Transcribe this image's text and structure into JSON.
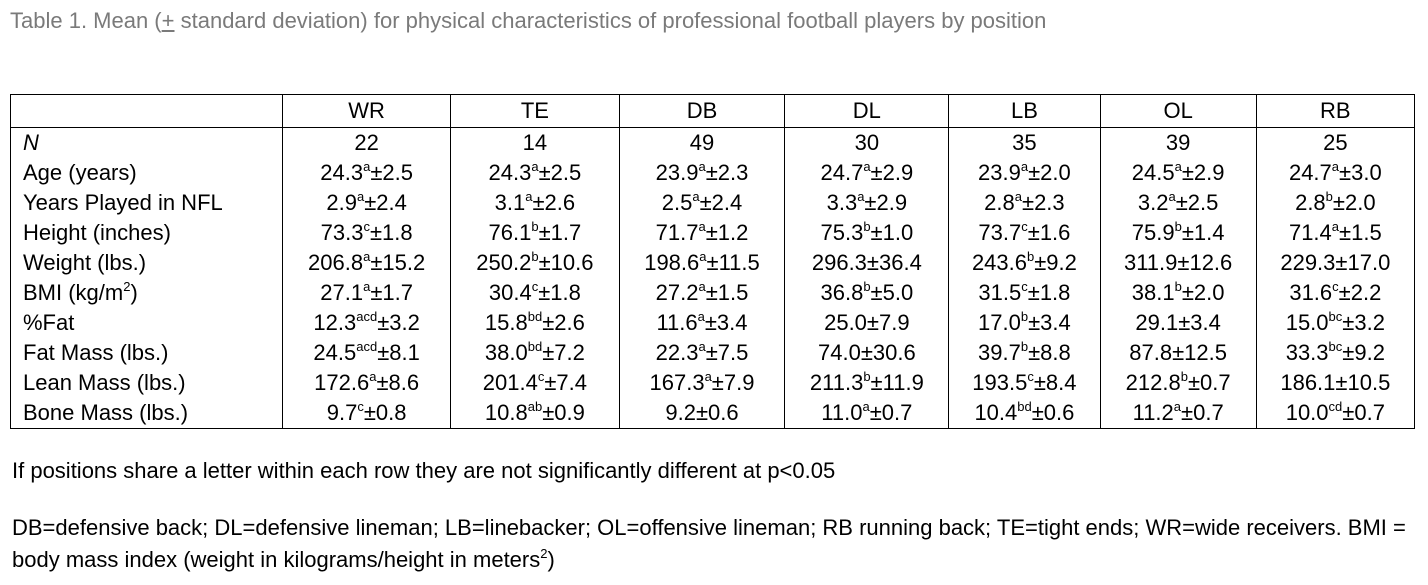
{
  "caption": {
    "prefix": "Table 1. Mean (",
    "pm": "+",
    "suffix": " standard deviation) for physical characteristics of professional football players by position"
  },
  "table": {
    "columns": [
      "",
      "WR",
      "TE",
      "DB",
      "DL",
      "LB",
      "OL",
      "RB"
    ],
    "n_row": {
      "label": "N",
      "values": [
        "22",
        "14",
        "49",
        "30",
        "35",
        "39",
        "25"
      ]
    },
    "rows": [
      {
        "label": "Age (years)",
        "cells": [
          {
            "m": "24.3",
            "s": "a",
            "sd": "±2.5"
          },
          {
            "m": "24.3",
            "s": "a",
            "sd": "±2.5"
          },
          {
            "m": "23.9",
            "s": "a",
            "sd": "±2.3"
          },
          {
            "m": "24.7",
            "s": "a",
            "sd": "±2.9"
          },
          {
            "m": "23.9",
            "s": "a",
            "sd": "±2.0"
          },
          {
            "m": "24.5",
            "s": "a",
            "sd": "±2.9"
          },
          {
            "m": "24.7",
            "s": "a",
            "sd": "±3.0"
          }
        ]
      },
      {
        "label": "Years Played in NFL",
        "cells": [
          {
            "m": "2.9",
            "s": "a",
            "sd": "±2.4"
          },
          {
            "m": "3.1",
            "s": "a",
            "sd": "±2.6"
          },
          {
            "m": "2.5",
            "s": "a",
            "sd": "±2.4"
          },
          {
            "m": "3.3",
            "s": "a",
            "sd": "±2.9"
          },
          {
            "m": "2.8",
            "s": "a",
            "sd": "±2.3"
          },
          {
            "m": "3.2",
            "s": "a",
            "sd": "±2.5"
          },
          {
            "m": "2.8",
            "s": "b",
            "sd": "±2.0"
          }
        ]
      },
      {
        "label": "Height (inches)",
        "cells": [
          {
            "m": "73.3",
            "s": "c",
            "sd": "±1.8"
          },
          {
            "m": "76.1",
            "s": "b",
            "sd": "±1.7"
          },
          {
            "m": "71.7",
            "s": "a",
            "sd": "±1.2"
          },
          {
            "m": "75.3",
            "s": "b",
            "sd": "±1.0"
          },
          {
            "m": "73.7",
            "s": "c",
            "sd": "±1.6"
          },
          {
            "m": "75.9",
            "s": "b",
            "sd": "±1.4"
          },
          {
            "m": "71.4",
            "s": "a",
            "sd": "±1.5"
          }
        ]
      },
      {
        "label": "Weight (lbs.)",
        "cells": [
          {
            "m": "206.8",
            "s": "a",
            "sd": "±15.2"
          },
          {
            "m": "250.2",
            "s": "b",
            "sd": "±10.6"
          },
          {
            "m": "198.6",
            "s": "a",
            "sd": "±11.5"
          },
          {
            "m": "296.3",
            "s": "",
            "sd": "±36.4"
          },
          {
            "m": "243.6",
            "s": "b",
            "sd": "±9.2"
          },
          {
            "m": "311.9",
            "s": "",
            "sd": "±12.6"
          },
          {
            "m": "229.3",
            "s": "",
            "sd": "±17.0"
          }
        ]
      },
      {
        "label": "BMI (kg/m",
        "label_sup": "2",
        "label_after": ")",
        "cells": [
          {
            "m": "27.1",
            "s": "a",
            "sd": "±1.7"
          },
          {
            "m": "30.4",
            "s": "c",
            "sd": "±1.8"
          },
          {
            "m": "27.2",
            "s": "a",
            "sd": "±1.5"
          },
          {
            "m": "36.8",
            "s": "b",
            "sd": "±5.0"
          },
          {
            "m": "31.5",
            "s": "c",
            "sd": "±1.8"
          },
          {
            "m": "38.1",
            "s": "b",
            "sd": "±2.0"
          },
          {
            "m": "31.6",
            "s": "c",
            "sd": "±2.2"
          }
        ]
      },
      {
        "label": "%Fat",
        "cells": [
          {
            "m": "12.3",
            "s": "acd",
            "sd": "±3.2"
          },
          {
            "m": "15.8",
            "s": "bd",
            "sd": "±2.6"
          },
          {
            "m": "11.6",
            "s": "a",
            "sd": "±3.4"
          },
          {
            "m": "25.0",
            "s": "",
            "sd": "±7.9"
          },
          {
            "m": "17.0",
            "s": "b",
            "sd": "±3.4"
          },
          {
            "m": "29.1",
            "s": "",
            "sd": "±3.4"
          },
          {
            "m": "15.0",
            "s": "bc",
            "sd": "±3.2"
          }
        ]
      },
      {
        "label": "Fat Mass (lbs.)",
        "cells": [
          {
            "m": "24.5",
            "s": "acd",
            "sd": "±8.1"
          },
          {
            "m": "38.0",
            "s": "bd",
            "sd": "±7.2"
          },
          {
            "m": "22.3",
            "s": "a",
            "sd": "±7.5"
          },
          {
            "m": "74.0",
            "s": "",
            "sd": "±30.6"
          },
          {
            "m": "39.7",
            "s": "b",
            "sd": "±8.8"
          },
          {
            "m": "87.8",
            "s": "",
            "sd": "±12.5"
          },
          {
            "m": "33.3",
            "s": "bc",
            "sd": "±9.2"
          }
        ]
      },
      {
        "label": "Lean Mass (lbs.)",
        "cells": [
          {
            "m": "172.6",
            "s": "a",
            "sd": "±8.6"
          },
          {
            "m": "201.4",
            "s": "c",
            "sd": "±7.4"
          },
          {
            "m": "167.3",
            "s": "a",
            "sd": "±7.9"
          },
          {
            "m": "211.3",
            "s": "b",
            "sd": "±11.9"
          },
          {
            "m": "193.5",
            "s": "c",
            "sd": "±8.4"
          },
          {
            "m": "212.8",
            "s": "b",
            "sd": "±0.7"
          },
          {
            "m": "186.1",
            "s": "",
            "sd": "±10.5"
          }
        ]
      },
      {
        "label": "Bone Mass (lbs.)",
        "cells": [
          {
            "m": "9.7",
            "s": "c",
            "sd": "±0.8"
          },
          {
            "m": "10.8",
            "s": "ab",
            "sd": "±0.9"
          },
          {
            "m": "9.2",
            "s": "",
            "sd": "±0.6"
          },
          {
            "m": "11.0",
            "s": "a",
            "sd": "±0.7"
          },
          {
            "m": "10.4",
            "s": "bd",
            "sd": "±0.6"
          },
          {
            "m": "11.2",
            "s": "a",
            "sd": "±0.7"
          },
          {
            "m": "10.0",
            "s": "cd",
            "sd": "±0.7"
          }
        ]
      }
    ]
  },
  "notes": {
    "significance": "If positions share a letter within each row they are not significantly different at p<0.05",
    "abbreviations": "DB=defensive back; DL=defensive lineman; LB=linebacker; OL=offensive lineman; RB running back; TE=tight ends; WR=wide receivers. BMI = body mass index (weight in kilograms/height in meters",
    "abbreviations_sup": "2",
    "abbreviations_end": ")"
  }
}
